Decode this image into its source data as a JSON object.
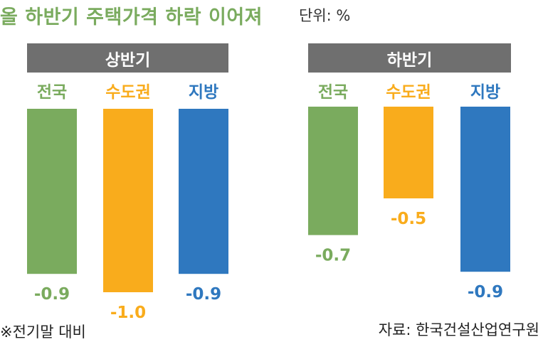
{
  "header": {
    "title": "올 하반기 주택가격 하락 이어져",
    "unit": "단위: %"
  },
  "colors": {
    "national": "#7aab5e",
    "capital": "#f9ac1c",
    "regional": "#2f78bf",
    "panel_header": "#6f6f6f"
  },
  "chart_data": [
    {
      "type": "bar",
      "title": "상반기",
      "categories": [
        "전국",
        "수도권",
        "지방"
      ],
      "values": [
        -0.9,
        -1.0,
        -0.9
      ],
      "value_labels": [
        "-0.9",
        "-1.0",
        "-0.9"
      ],
      "ylim": [
        -1.0,
        0
      ],
      "grid": false,
      "legend": "none"
    },
    {
      "type": "bar",
      "title": "하반기",
      "categories": [
        "전국",
        "수도권",
        "지방"
      ],
      "values": [
        -0.7,
        -0.5,
        -0.9
      ],
      "value_labels": [
        "-0.7",
        "-0.5",
        "-0.9"
      ],
      "ylim": [
        -1.0,
        0
      ],
      "grid": false,
      "legend": "none"
    }
  ],
  "footer": {
    "note": "※전기말 대비",
    "source": "자료: 한국건설산업연구원"
  }
}
